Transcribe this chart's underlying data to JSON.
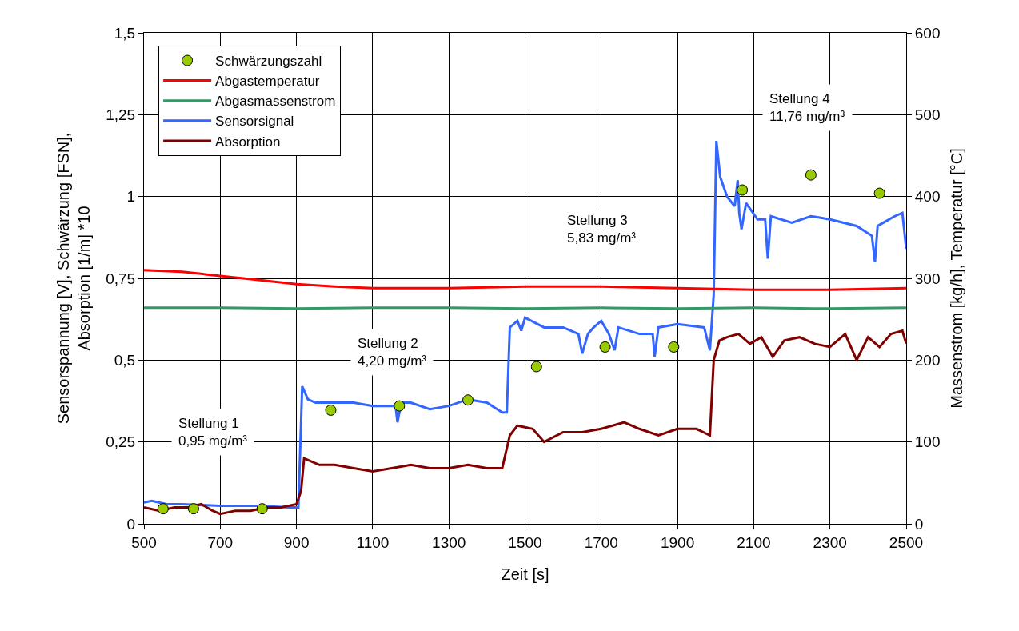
{
  "chart_data": {
    "type": "line",
    "xlabel": "Zeit [s]",
    "ylabel": "Sensorspannung [V], Schwärzung [FSN],\nAbsorption [1/m] *10",
    "y2label": "Massenstrom [kg/h], Temperatur [°C]",
    "xlim": [
      500,
      2500
    ],
    "xticks": [
      500,
      700,
      900,
      1100,
      1300,
      1500,
      1700,
      1900,
      2100,
      2300,
      2500
    ],
    "ylim": [
      0,
      1.5
    ],
    "yticks": [
      0,
      {
        "value": 0.25,
        "label": "0,25"
      },
      {
        "value": 0.5,
        "label": "0,5"
      },
      {
        "value": 0.75,
        "label": "0,75"
      },
      1,
      {
        "value": 1.25,
        "label": "1,25"
      },
      {
        "value": 1.5,
        "label": "1,5"
      }
    ],
    "y2lim": [
      0,
      600
    ],
    "y2ticks": [
      0,
      100,
      200,
      300,
      400,
      500,
      600
    ],
    "grid": true,
    "legend": "top left",
    "series": [
      {
        "name": "Schwärzungszahl",
        "type": "scatter",
        "marker": "circle",
        "color": "#99cc00",
        "x": [
          550,
          630,
          810,
          990,
          1170,
          1350,
          1530,
          1710,
          1890,
          2070,
          2250,
          2430
        ],
        "values": [
          0.046,
          0.046,
          0.046,
          0.347,
          0.36,
          0.378,
          0.48,
          0.54,
          0.54,
          1.02,
          1.066,
          1.01
        ]
      },
      {
        "name": "Abgastemperatur",
        "axis": "y2",
        "color": "#ff0000",
        "x": [
          500,
          600,
          700,
          800,
          900,
          1000,
          1100,
          1300,
          1500,
          1700,
          1900,
          2100,
          2300,
          2500
        ],
        "values": [
          310,
          308,
          303,
          298,
          293,
          290,
          288,
          288,
          290,
          290,
          288,
          286,
          286,
          288
        ]
      },
      {
        "name": "Abgasmassenstrom",
        "axis": "y2",
        "color": "#339966",
        "x": [
          500,
          700,
          900,
          1100,
          1300,
          1500,
          1700,
          1900,
          2100,
          2300,
          2500
        ],
        "values": [
          264,
          264,
          263,
          264,
          264,
          263,
          264,
          263,
          264,
          263,
          264
        ]
      },
      {
        "name": "Sensorsignal",
        "color": "#3366ff",
        "x": [
          500,
          520,
          560,
          600,
          700,
          800,
          880,
          905,
          915,
          930,
          950,
          1000,
          1050,
          1100,
          1160,
          1165,
          1175,
          1200,
          1250,
          1300,
          1350,
          1400,
          1440,
          1452,
          1460,
          1480,
          1490,
          1500,
          1550,
          1600,
          1640,
          1650,
          1665,
          1680,
          1700,
          1720,
          1735,
          1745,
          1800,
          1835,
          1840,
          1850,
          1900,
          1970,
          1985,
          1995,
          2002,
          2012,
          2030,
          2050,
          2058,
          2062,
          2068,
          2080,
          2110,
          2130,
          2137,
          2145,
          2200,
          2250,
          2300,
          2370,
          2410,
          2418,
          2425,
          2440,
          2470,
          2490,
          2500
        ],
        "values": [
          0.065,
          0.07,
          0.06,
          0.06,
          0.055,
          0.055,
          0.05,
          0.05,
          0.42,
          0.38,
          0.37,
          0.37,
          0.37,
          0.36,
          0.36,
          0.31,
          0.37,
          0.37,
          0.35,
          0.36,
          0.38,
          0.37,
          0.34,
          0.34,
          0.6,
          0.62,
          0.59,
          0.63,
          0.6,
          0.6,
          0.58,
          0.52,
          0.58,
          0.6,
          0.62,
          0.58,
          0.53,
          0.6,
          0.58,
          0.58,
          0.51,
          0.6,
          0.61,
          0.6,
          0.53,
          0.7,
          1.17,
          1.06,
          1.0,
          0.97,
          1.05,
          0.95,
          0.9,
          0.98,
          0.93,
          0.93,
          0.81,
          0.94,
          0.92,
          0.94,
          0.93,
          0.91,
          0.88,
          0.8,
          0.91,
          0.92,
          0.94,
          0.95,
          0.84
        ]
      },
      {
        "name": "Absorption",
        "color": "#800000",
        "x": [
          500,
          540,
          580,
          620,
          650,
          680,
          700,
          740,
          780,
          820,
          860,
          900,
          912,
          920,
          960,
          1000,
          1050,
          1100,
          1150,
          1200,
          1250,
          1300,
          1350,
          1400,
          1440,
          1450,
          1460,
          1480,
          1520,
          1550,
          1600,
          1650,
          1700,
          1760,
          1800,
          1850,
          1900,
          1950,
          1985,
          1995,
          2010,
          2030,
          2060,
          2090,
          2120,
          2150,
          2180,
          2220,
          2260,
          2300,
          2340,
          2370,
          2400,
          2430,
          2460,
          2490,
          2500
        ],
        "values": [
          0.05,
          0.04,
          0.05,
          0.05,
          0.06,
          0.04,
          0.03,
          0.04,
          0.04,
          0.05,
          0.05,
          0.06,
          0.1,
          0.2,
          0.18,
          0.18,
          0.17,
          0.16,
          0.17,
          0.18,
          0.17,
          0.17,
          0.18,
          0.17,
          0.17,
          0.22,
          0.27,
          0.3,
          0.29,
          0.25,
          0.28,
          0.28,
          0.29,
          0.31,
          0.29,
          0.27,
          0.29,
          0.29,
          0.27,
          0.5,
          0.56,
          0.57,
          0.58,
          0.55,
          0.57,
          0.51,
          0.56,
          0.57,
          0.55,
          0.54,
          0.58,
          0.5,
          0.57,
          0.54,
          0.58,
          0.59,
          0.55
        ]
      }
    ],
    "annotations": [
      "Stellung 1\n0,95 mg/m³",
      "Stellung 2\n4,20 mg/m³",
      "Stellung 3\n5,83 mg/m³",
      "Stellung 4\n11,76 mg/m³"
    ]
  }
}
